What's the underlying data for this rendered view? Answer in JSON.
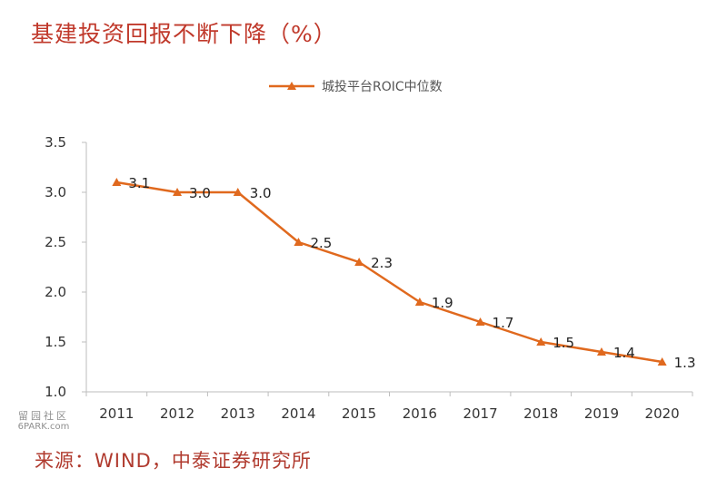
{
  "title": "基建投资回报不断下降（%）",
  "source": "来源：WIND，中泰证券研究所",
  "watermark": {
    "line1": "留园社区",
    "line2": "6PARK.com"
  },
  "colors": {
    "series": "#e0691e",
    "title": "#c0392b",
    "source": "#b03a2e",
    "axis": "#bdbdbd"
  },
  "chart_data": {
    "type": "line",
    "title": "基建投资回报不断下降（%）",
    "xlabel": "",
    "ylabel": "",
    "categories": [
      "2011",
      "2012",
      "2013",
      "2014",
      "2015",
      "2016",
      "2017",
      "2018",
      "2019",
      "2020"
    ],
    "series": [
      {
        "name": "城投平台ROIC中位数",
        "values": [
          3.1,
          3.0,
          3.0,
          2.5,
          2.3,
          1.9,
          1.7,
          1.5,
          1.4,
          1.3
        ],
        "labels": [
          "3.1",
          "3.0",
          "3.0",
          "2.5",
          "2.3",
          "1.9",
          "1.7",
          "1.5",
          "1.4",
          "1.3"
        ]
      }
    ],
    "ylim": [
      1.0,
      3.5
    ],
    "yticks": [
      "3.5",
      "3.0",
      "2.5",
      "2.0",
      "1.5",
      "1.0"
    ],
    "grid": false,
    "legend": "top-center",
    "marker": "triangle"
  }
}
